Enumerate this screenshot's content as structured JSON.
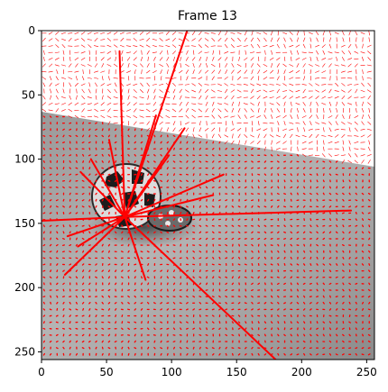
{
  "chart_data": {
    "type": "image",
    "title": "Frame 13",
    "xlabel": "",
    "ylabel": "",
    "xlim": [
      0,
      256
    ],
    "ylim": [
      256,
      0
    ],
    "y_inverted": true,
    "xticks": [
      0,
      50,
      100,
      150,
      200,
      250
    ],
    "yticks": [
      0,
      50,
      100,
      150,
      200,
      250
    ],
    "grid": false,
    "field_color": "#ff0000",
    "vector_field": {
      "description_of_content": "grayscale frame with a flow vector field drawn as red line segments over a regular grid",
      "grid_spacing": 5,
      "dominant_vectors": [
        {
          "x0": 64,
          "y0": 145,
          "x1": 112,
          "y1": 0
        },
        {
          "x0": 64,
          "y0": 145,
          "x1": 180,
          "y1": 256
        },
        {
          "x0": 64,
          "y0": 145,
          "x1": 0,
          "y1": 148
        },
        {
          "x0": 64,
          "y0": 145,
          "x1": 238,
          "y1": 140
        },
        {
          "x0": 64,
          "y0": 145,
          "x1": 60,
          "y1": 16
        },
        {
          "x0": 64,
          "y0": 145,
          "x1": 52,
          "y1": 85
        },
        {
          "x0": 64,
          "y0": 145,
          "x1": 88,
          "y1": 66
        },
        {
          "x0": 64,
          "y0": 145,
          "x1": 110,
          "y1": 76
        },
        {
          "x0": 64,
          "y0": 145,
          "x1": 98,
          "y1": 97
        },
        {
          "x0": 64,
          "y0": 145,
          "x1": 140,
          "y1": 112
        },
        {
          "x0": 64,
          "y0": 145,
          "x1": 132,
          "y1": 128
        },
        {
          "x0": 64,
          "y0": 145,
          "x1": 30,
          "y1": 110
        },
        {
          "x0": 64,
          "y0": 145,
          "x1": 38,
          "y1": 100
        },
        {
          "x0": 64,
          "y0": 145,
          "x1": 18,
          "y1": 190
        },
        {
          "x0": 64,
          "y0": 145,
          "x1": 80,
          "y1": 194
        },
        {
          "x0": 64,
          "y0": 145,
          "x1": 20,
          "y1": 160
        },
        {
          "x0": 64,
          "y0": 145,
          "x1": 28,
          "y1": 168
        }
      ]
    }
  }
}
